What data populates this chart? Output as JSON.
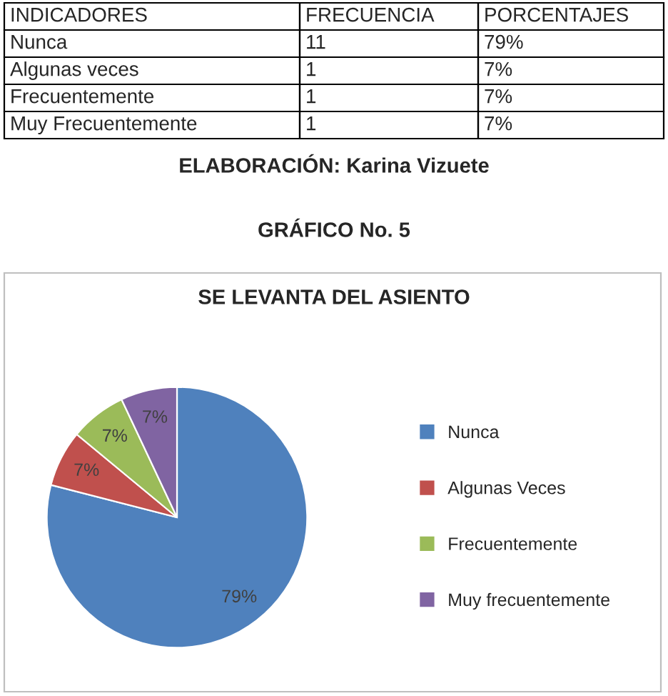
{
  "chart_data": [
    {
      "type": "other",
      "annotations": [
        "INDICADORES",
        "FRECUENCIA",
        "PORCENTAJES",
        "Nunca",
        "11",
        "79%",
        "Algunas veces",
        "1",
        "7%",
        "Frecuentemente",
        "1",
        "7%",
        "Muy Frecuentemente",
        "1",
        "7%",
        "ELABORACIÓN: Karina Vizuete",
        "GRÁFICO No. 5"
      ]
    },
    {
      "type": "pie",
      "title": "SE LEVANTA DEL ASIENTO",
      "categories": [
        "Nunca",
        "Algunas Veces",
        "Frecuentemente",
        "Muy frecuentemente"
      ],
      "values": [
        79,
        7,
        7,
        7
      ],
      "colors": [
        "#4f81bd",
        "#c0504d",
        "#9bbb59",
        "#8064a2"
      ],
      "value_labels": [
        "79%",
        "7%",
        "7%",
        "7%"
      ],
      "legend": "right"
    }
  ]
}
